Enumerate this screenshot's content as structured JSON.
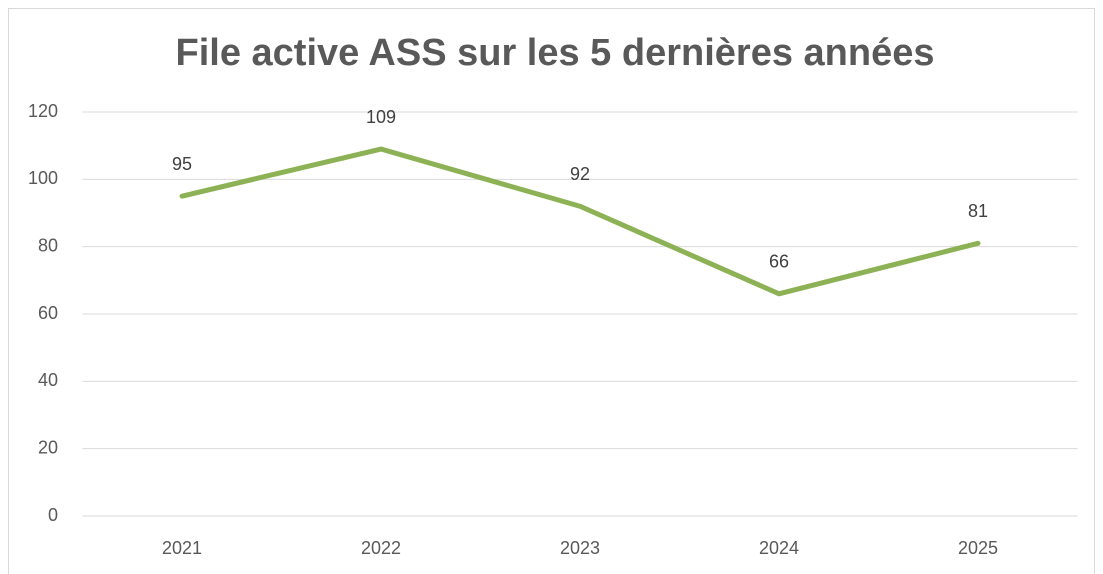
{
  "chart_data": {
    "type": "line",
    "title": "File active ASS sur les 5 dernières années",
    "categories": [
      "2021",
      "2022",
      "2023",
      "2024",
      "2025"
    ],
    "series": [
      {
        "name": "File active",
        "color": "#8db255",
        "values": [
          95,
          109,
          92,
          66,
          81
        ]
      }
    ],
    "ylim": [
      0,
      120
    ],
    "yticks": [
      0,
      20,
      40,
      60,
      80,
      100,
      120
    ],
    "grid": true,
    "data_labels": true
  }
}
